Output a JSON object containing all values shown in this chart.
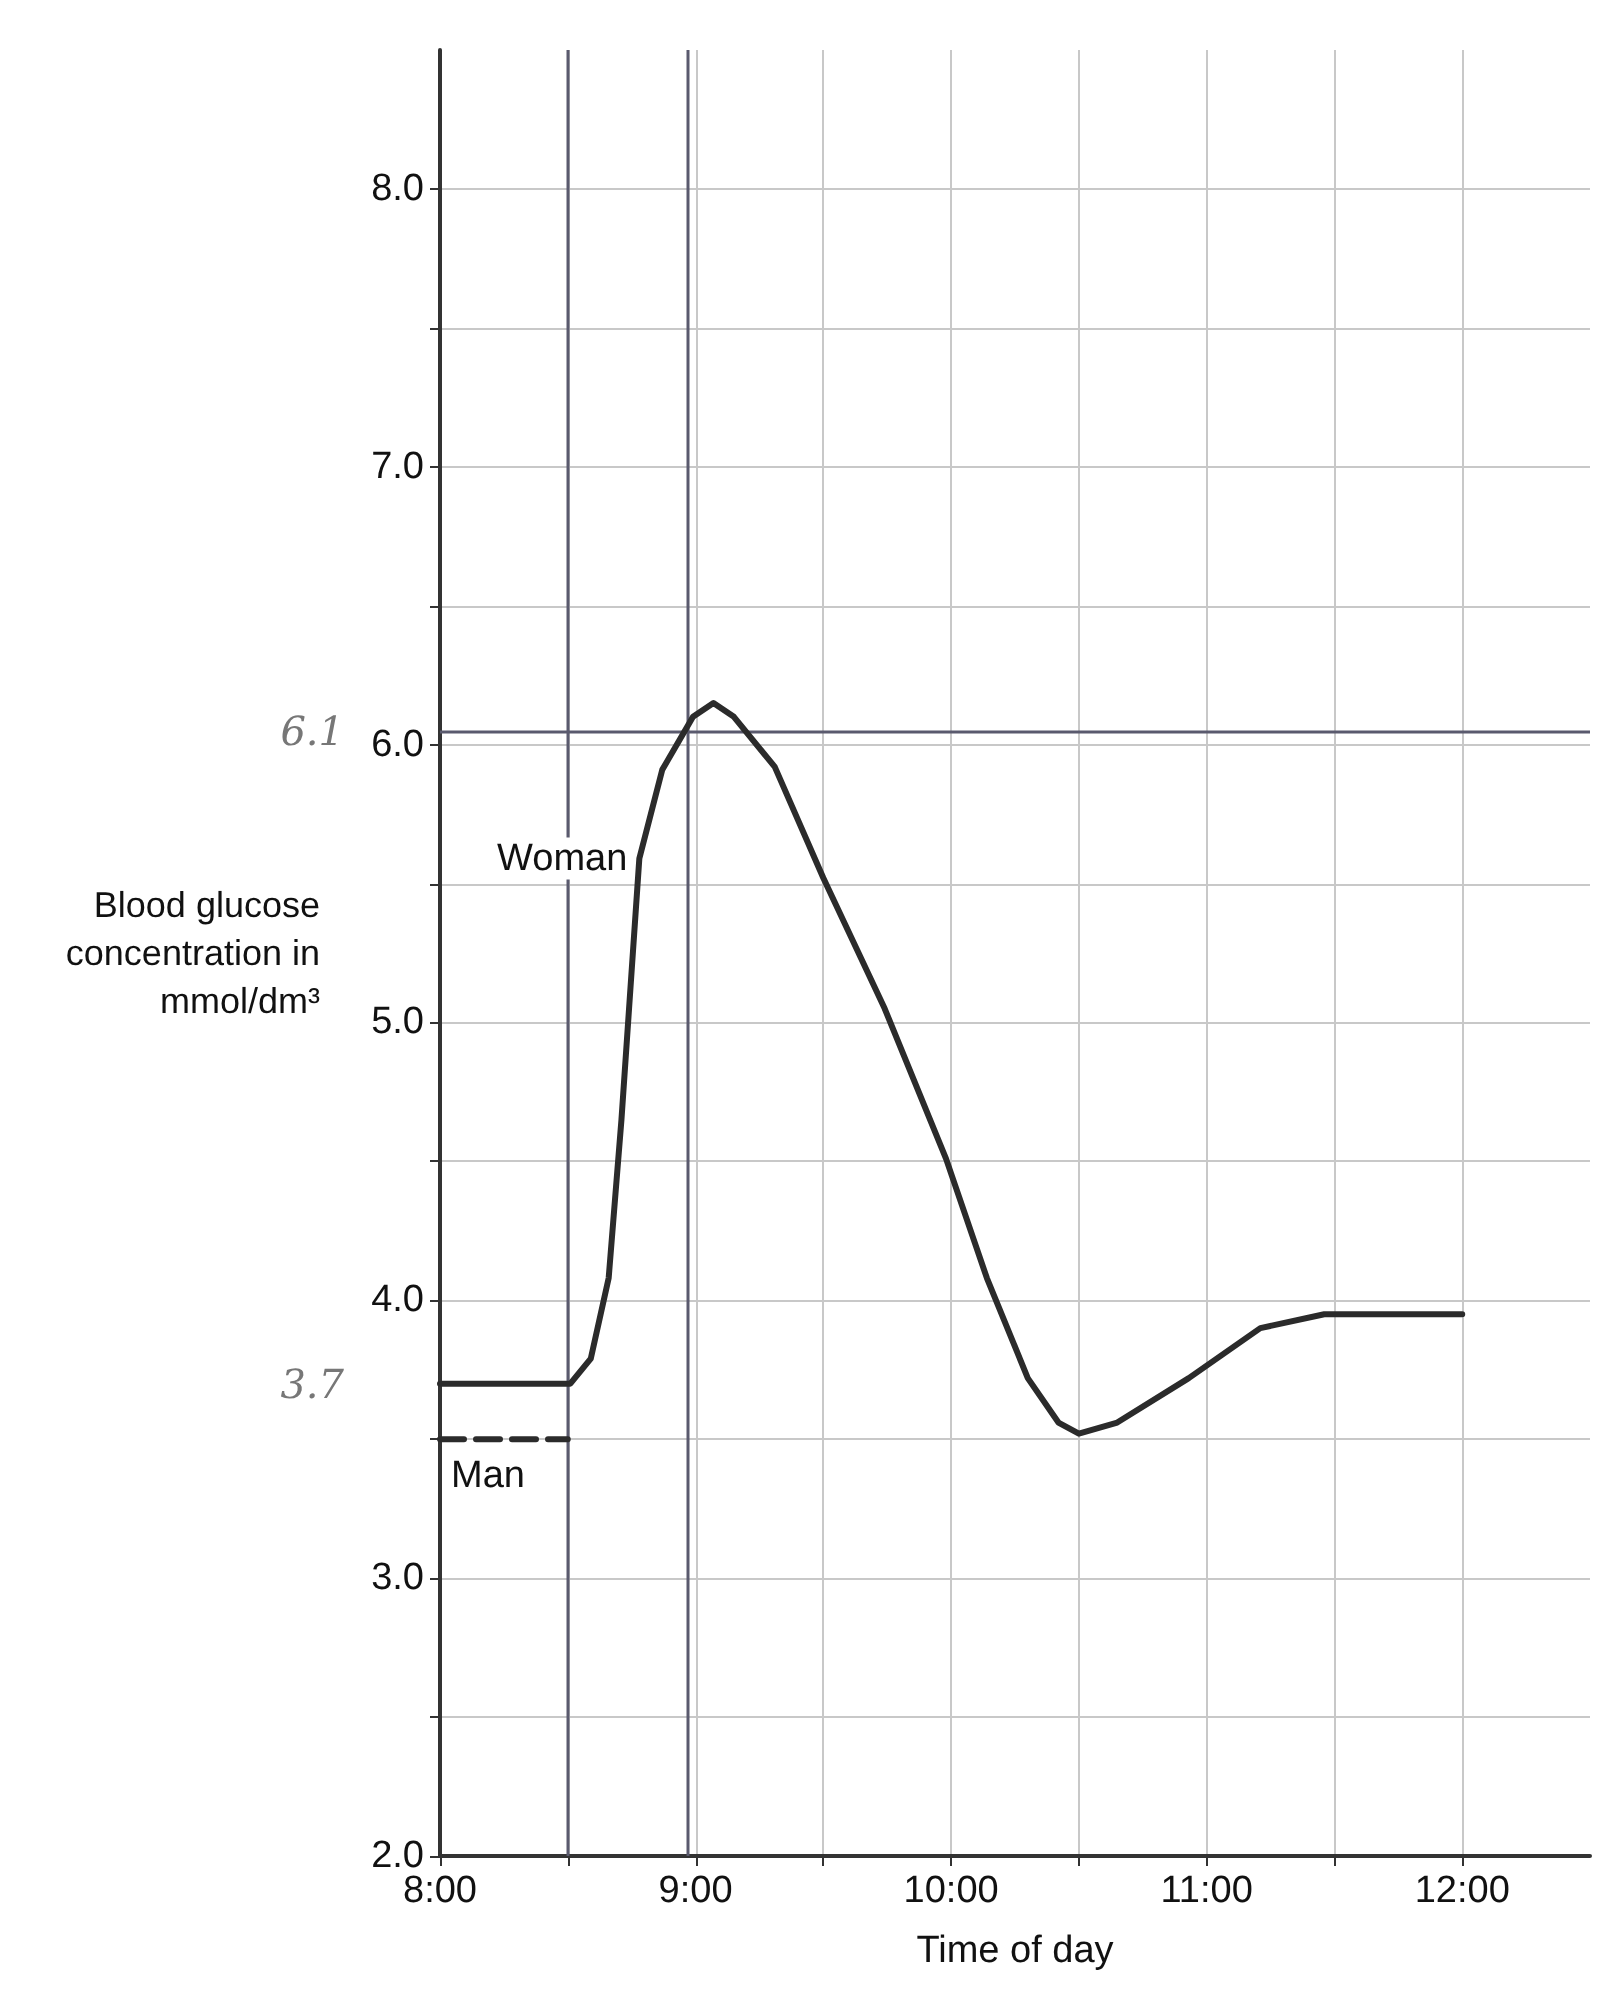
{
  "chart_data": {
    "type": "line",
    "xlabel": "Time of day",
    "ylabel": "Blood glucose concentration in mmol/dm³",
    "xlim": [
      8,
      12.5
    ],
    "ylim": [
      2,
      8.5
    ],
    "xticks": [
      {
        "value": 8,
        "label": "8:00"
      },
      {
        "value": 8.5,
        "label": null
      },
      {
        "value": 9,
        "label": "9:00"
      },
      {
        "value": 9.5,
        "label": null
      },
      {
        "value": 10,
        "label": "10:00"
      },
      {
        "value": 10.5,
        "label": null
      },
      {
        "value": 11,
        "label": "11:00"
      },
      {
        "value": 11.5,
        "label": null
      },
      {
        "value": 12,
        "label": "12:00"
      }
    ],
    "yticks": [
      {
        "value": 2,
        "label": "2.0"
      },
      {
        "value": 2.5,
        "label": null
      },
      {
        "value": 3,
        "label": "3.0"
      },
      {
        "value": 3.5,
        "label": null
      },
      {
        "value": 4,
        "label": "4.0"
      },
      {
        "value": 4.5,
        "label": null
      },
      {
        "value": 5,
        "label": "5.0"
      },
      {
        "value": 5.5,
        "label": null
      },
      {
        "value": 6,
        "label": "6.0"
      },
      {
        "value": 6.5,
        "label": null
      },
      {
        "value": 7,
        "label": "7.0"
      },
      {
        "value": 7.5,
        "label": null
      },
      {
        "value": 8,
        "label": "8.0"
      }
    ],
    "grid": true,
    "marker": "none",
    "series": [
      {
        "name": "Woman",
        "color": "#2b2b2b",
        "line_style": "solid",
        "x": [
          8,
          8.51,
          8.59,
          8.66,
          8.71,
          8.78,
          8.87,
          8.99,
          9.07,
          9.15,
          9.31,
          9.5,
          9.74,
          9.98,
          10.14,
          10.3,
          10.42,
          10.5,
          10.65,
          10.93,
          11.21,
          11.46,
          12
        ],
        "values": [
          3.7,
          3.7,
          3.79,
          4.08,
          4.65,
          5.59,
          5.91,
          6.1,
          6.15,
          6.1,
          5.92,
          5.52,
          5.05,
          4.51,
          4.08,
          3.72,
          3.56,
          3.52,
          3.56,
          3.72,
          3.9,
          3.95,
          3.95
        ]
      },
      {
        "name": "Man",
        "color": "#2b2b2b",
        "line_style": "dashed",
        "x": [
          8,
          8.5
        ],
        "values": [
          3.5,
          3.5
        ]
      }
    ],
    "ref_lines": [
      {
        "axis": "x",
        "value": 8.5,
        "color": "#5a5a6e"
      },
      {
        "axis": "x",
        "value": 8.97,
        "color": "#5a5a6e"
      },
      {
        "axis": "y",
        "value": 6.05,
        "color": "#5a5a6e"
      }
    ],
    "annotations": [
      {
        "text": "6.1",
        "x": 8,
        "y": 6.05
      },
      {
        "text": "3.7",
        "x": 8,
        "y": 3.7
      }
    ]
  }
}
